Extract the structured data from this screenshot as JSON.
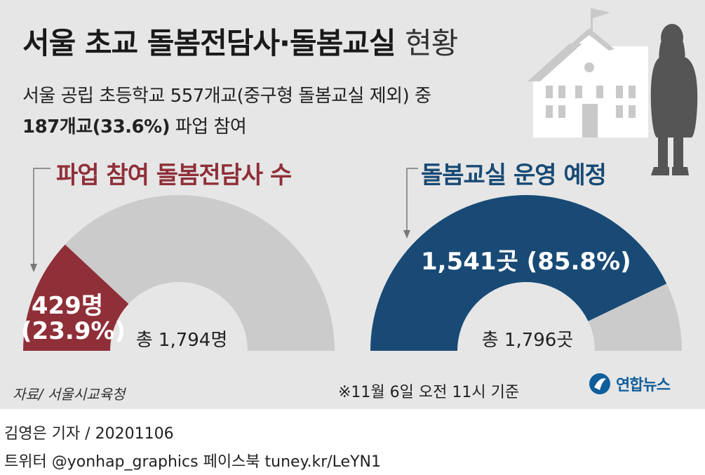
{
  "header": {
    "title": "서울 초교 돌봄전담사·돌봄교실",
    "title_suffix": "현황",
    "subtitle_line1": "서울 공립 초등학교 557개교(중구형 돌봄교실 제외) 중",
    "subtitle_line2_bold": "187개교(33.6%)",
    "subtitle_line2_rest": " 파업 참여"
  },
  "chart_data": [
    {
      "type": "pie",
      "subtype": "half-donut",
      "title": "파업 참여 돌봄전담사 수",
      "total": 1794,
      "value": 429,
      "share_percent": 23.9,
      "value_label": "429명",
      "share_label": "(23.9%)",
      "total_label": "총 1,794명",
      "colors": {
        "highlight": "#8f2f38",
        "rest": "#cbcbcb"
      }
    },
    {
      "type": "pie",
      "subtype": "half-donut",
      "title": "돌봄교실 운영 예정",
      "total": 1796,
      "value": 1541,
      "share_percent": 85.8,
      "value_label": "1,541곳 (85.8%)",
      "total_label": "총 1,796곳",
      "colors": {
        "highlight": "#184a75",
        "rest": "#cbcbcb"
      }
    }
  ],
  "footer": {
    "source": "자료/ 서울시교육청",
    "note": "※11월 6일 오전 11시 기준",
    "logo_text": "연합뉴스",
    "credit_line1": "김영은 기자 / 20201106",
    "credit_line2": "트위터 @yonhap_graphics  페이스북 tuney.kr/LeYN1"
  },
  "icons": [
    "school-building-icon",
    "standing-person-icon",
    "yonhap-logo-icon",
    "arrow-down-icon"
  ]
}
